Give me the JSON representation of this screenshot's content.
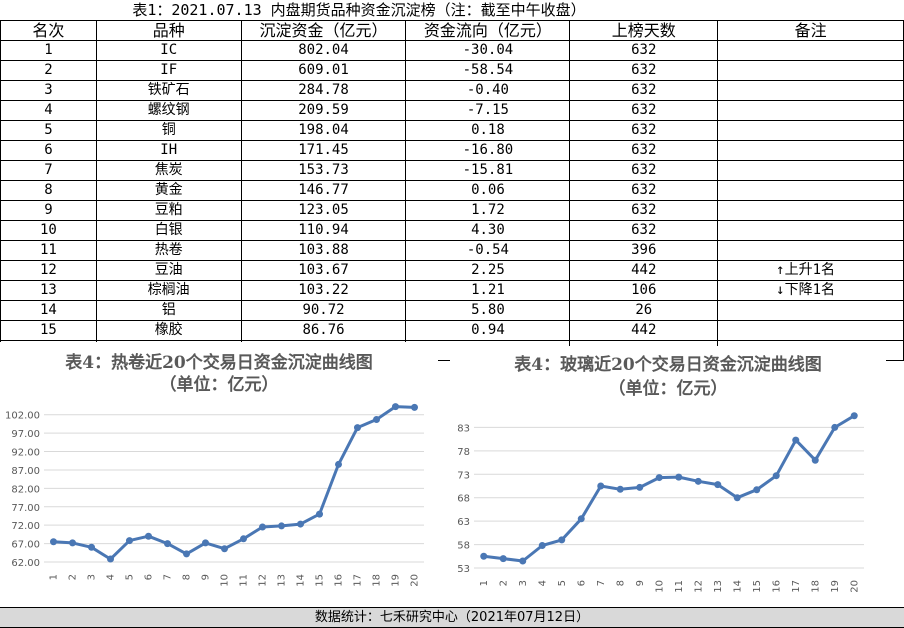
{
  "title": "表1：2021.07.13 内盘期货品种资金沉淀榜（注：截至中午收盘）",
  "table": {
    "headers": [
      "名次",
      "品种",
      "沉淀资金（亿元）",
      "资金流向（亿元）",
      "上榜天数",
      "备注"
    ],
    "rows": [
      [
        "1",
        "IC",
        "802.04",
        "-30.04",
        "632",
        ""
      ],
      [
        "2",
        "IF",
        "609.01",
        "-58.54",
        "632",
        ""
      ],
      [
        "3",
        "铁矿石",
        "284.78",
        "-0.40",
        "632",
        ""
      ],
      [
        "4",
        "螺纹钢",
        "209.59",
        "-7.15",
        "632",
        ""
      ],
      [
        "5",
        "铜",
        "198.04",
        "0.18",
        "632",
        ""
      ],
      [
        "6",
        "IH",
        "171.45",
        "-16.80",
        "632",
        ""
      ],
      [
        "7",
        "焦炭",
        "153.73",
        "-15.81",
        "632",
        ""
      ],
      [
        "8",
        "黄金",
        "146.77",
        "0.06",
        "632",
        ""
      ],
      [
        "9",
        "豆粕",
        "123.05",
        "1.72",
        "632",
        ""
      ],
      [
        "10",
        "白银",
        "110.94",
        "4.30",
        "632",
        ""
      ],
      [
        "11",
        "热卷",
        "103.88",
        "-0.54",
        "396",
        ""
      ],
      [
        "12",
        "豆油",
        "103.67",
        "2.25",
        "442",
        "↑上升1名"
      ],
      [
        "13",
        "棕榈油",
        "103.22",
        "1.21",
        "106",
        "↓下降1名"
      ],
      [
        "14",
        "铝",
        "90.72",
        "5.80",
        "26",
        ""
      ],
      [
        "15",
        "橡胶",
        "86.76",
        "0.94",
        "442",
        ""
      ]
    ]
  },
  "chart_data": [
    {
      "type": "line",
      "title": "表4：热卷近20个交易日资金沉淀曲线图",
      "subtitle": "（单位：亿元）",
      "x": [
        "1",
        "2",
        "3",
        "4",
        "5",
        "6",
        "7",
        "8",
        "9",
        "10",
        "11",
        "12",
        "13",
        "14",
        "15",
        "16",
        "17",
        "18",
        "19",
        "20"
      ],
      "series": [
        {
          "values": [
            67.5,
            67.2,
            66.0,
            62.8,
            67.8,
            69.0,
            67.0,
            64.2,
            67.2,
            65.6,
            68.3,
            71.5,
            71.8,
            72.3,
            75.0,
            88.5,
            98.5,
            100.7,
            104.2,
            104.0
          ]
        }
      ],
      "yticks": [
        "62.00",
        "67.00",
        "72.00",
        "77.00",
        "82.00",
        "87.00",
        "92.00",
        "97.00",
        "102.00"
      ],
      "ylim": [
        62,
        106
      ],
      "grid": true,
      "color": "#4a77b4"
    },
    {
      "type": "line",
      "title": "表4：玻璃近20个交易日资金沉淀曲线图",
      "subtitle": "（单位：亿元）",
      "x": [
        "1",
        "2",
        "3",
        "4",
        "5",
        "6",
        "7",
        "8",
        "9",
        "10",
        "11",
        "12",
        "13",
        "14",
        "15",
        "16",
        "17",
        "18",
        "19",
        "20"
      ],
      "series": [
        {
          "values": [
            55.5,
            55.0,
            54.5,
            57.8,
            59.0,
            63.5,
            70.5,
            69.8,
            70.2,
            72.3,
            72.4,
            71.5,
            70.8,
            68.0,
            69.7,
            72.7,
            80.3,
            76.0,
            83.0,
            85.5
          ]
        }
      ],
      "yticks": [
        "53",
        "58",
        "63",
        "68",
        "73",
        "78",
        "83"
      ],
      "ylim": [
        53,
        88
      ],
      "grid": true,
      "color": "#4a77b4"
    }
  ],
  "footer": "数据统计：七禾研究中心（2021年07月12日）"
}
